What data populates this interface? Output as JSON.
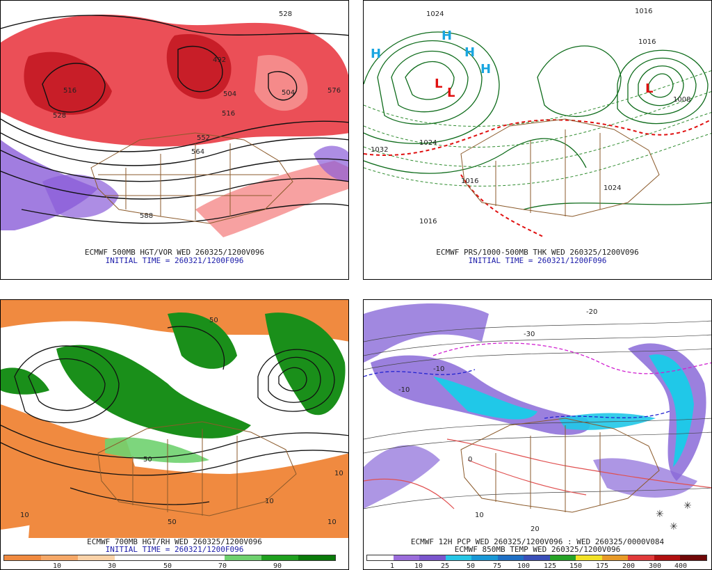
{
  "panels": [
    {
      "id": "p500",
      "caption_line1": "ECMWF 500MB HGT/VOR WED 260325/1200V096",
      "caption_line2": "INITIAL TIME = 260321/1200F096",
      "contour_labels": [
        "516",
        "528",
        "504",
        "492",
        "516",
        "504",
        "576",
        "552",
        "564",
        "588",
        "528"
      ]
    },
    {
      "id": "pprs",
      "caption_line1": "ECMWF PRS/1000-500MB THK WED 260325/1200V096",
      "caption_line2": "INITIAL TIME = 260321/1200F096",
      "contour_labels": [
        "1024",
        "1016",
        "1032",
        "1024",
        "1016",
        "1016",
        "1024",
        "1016",
        "1008"
      ]
    },
    {
      "id": "p700",
      "caption_line1": "ECMWF 700MB HGT/RH WED 260325/1200V096",
      "caption_line2": "INITIAL TIME = 260321/1200F096",
      "scale_labels": [
        "10",
        "30",
        "50",
        "70",
        "90"
      ],
      "scale_colors": [
        "#f08a40",
        "#f5a868",
        "#fad2a8",
        "#ffffff",
        "#ffffff",
        "#ffffff",
        "#6fd16f",
        "#1fa01f",
        "#0a7a0a"
      ],
      "contour_labels": [
        "10",
        "50",
        "10",
        "50",
        "10",
        "50",
        "10"
      ]
    },
    {
      "id": "ppcp",
      "caption_line1": "ECMWF 12H PCP WED 260325/1200V096 : WED 260325/0000V084",
      "caption_line2": "ECMWF 850MB TEMP WED 260325/1200V096",
      "scale_labels": [
        "1",
        "10",
        "25",
        "50",
        "75",
        "100",
        "125",
        "150",
        "175",
        "200",
        "300",
        "400"
      ],
      "scale_colors": [
        "#ffffff",
        "#9b6ddb",
        "#7a55cc",
        "#27c6e6",
        "#1a98d6",
        "#1f6fc4",
        "#3a4fb8",
        "#27a327",
        "#f2e227",
        "#e89a27",
        "#e03a3a",
        "#b01010",
        "#700808"
      ],
      "contour_labels": [
        "-10",
        "-10",
        "0",
        "10",
        "20",
        "-20",
        "-30"
      ]
    }
  ],
  "colors": {
    "vorticity_red": "#e8303a",
    "vorticity_light": "#f58a8a",
    "vorticity_purple": "#8a5cd8",
    "pressure_line": "#0d6b1a",
    "thickness_dash": "#2e8b2e",
    "thickness_red": "#e01010",
    "high_cyan": "#1aa6e0",
    "low_red": "#e01010",
    "map_brown": "#8b5a2b",
    "rh_orange": "#f08a40",
    "rh_green": "#1a8f1a",
    "precip_purple": "#8a6ad8",
    "precip_cyan": "#20c8e8",
    "temp_red": "#e05050",
    "temp_magenta": "#d020d0",
    "temp_blue": "#2020d0"
  }
}
